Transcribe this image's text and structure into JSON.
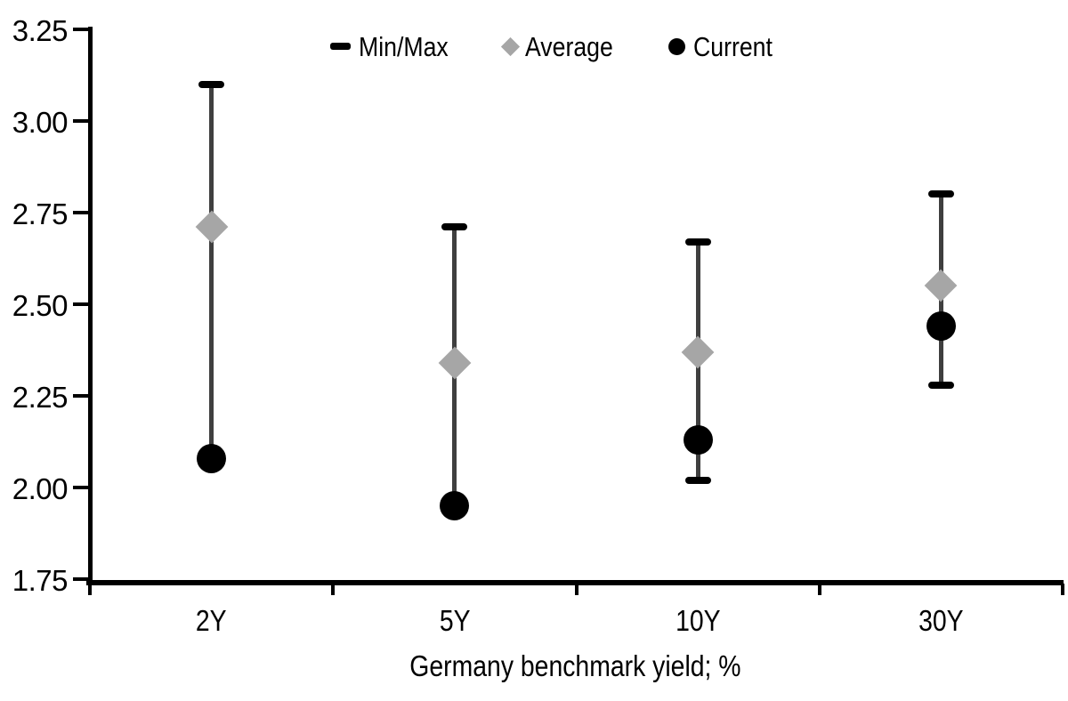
{
  "figure": {
    "background": "#ffffff"
  },
  "chart_data": {
    "type": "scatter",
    "subtype": "min-max-range-dot-plot",
    "title": "",
    "xlabel": "Germany benchmark yield; %",
    "ylabel": "",
    "categories": [
      "2Y",
      "5Y",
      "10Y",
      "30Y"
    ],
    "series": [
      {
        "name": "Min/Max",
        "marker": "dash",
        "max": [
          3.1,
          2.71,
          2.67,
          2.8
        ],
        "min": [
          2.08,
          1.95,
          2.02,
          2.28
        ],
        "min_cap_visible": [
          false,
          false,
          true,
          true
        ]
      },
      {
        "name": "Average",
        "marker": "diamond",
        "values": [
          2.71,
          2.34,
          2.37,
          2.55
        ]
      },
      {
        "name": "Current",
        "marker": "circle",
        "values": [
          2.08,
          1.95,
          2.13,
          2.44
        ]
      }
    ],
    "ylim": [
      1.75,
      3.25
    ],
    "ytick_step": 0.25,
    "ytick_labels": [
      "3.25",
      "3.00",
      "2.75",
      "2.50",
      "2.25",
      "2.00",
      "1.75"
    ],
    "grid": false,
    "legend_position": "top-center",
    "legend": [
      {
        "label": "Min/Max",
        "marker": "dash"
      },
      {
        "label": "Average",
        "marker": "diamond"
      },
      {
        "label": "Current",
        "marker": "circle"
      }
    ],
    "colors": {
      "axis": "#000000",
      "range_line": "#3f3f3f",
      "min_max_cap": "#000000",
      "average": "#a6a6a6",
      "current": "#000000",
      "text": "#000000"
    }
  }
}
